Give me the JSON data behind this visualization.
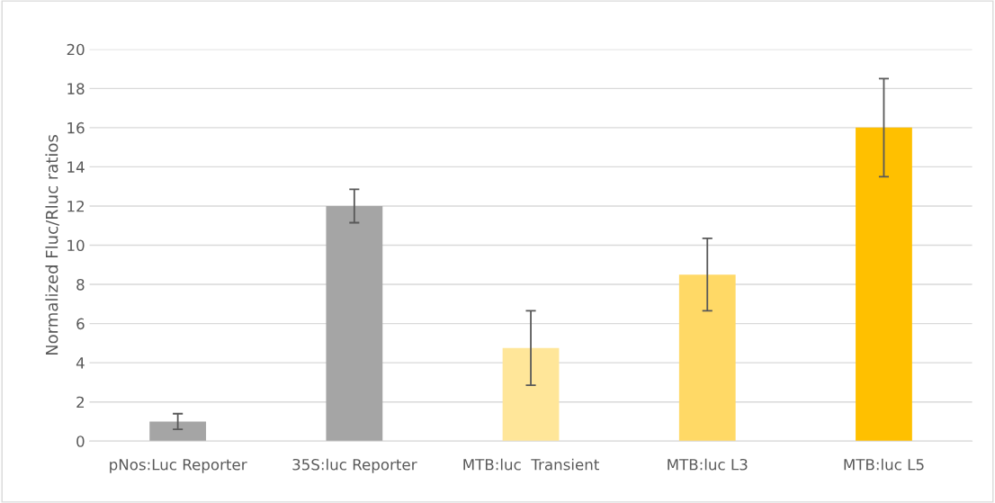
{
  "chart_data": {
    "type": "bar",
    "ylabel": "Normalized Fluc/Rluc ratios",
    "categories": [
      "pNos:Luc Reporter",
      "35S:luc Reporter",
      "MTB:luc  Transient",
      "MTB:luc L3",
      "MTB:luc L5"
    ],
    "values": [
      1.0,
      12.0,
      4.75,
      8.5,
      16.0
    ],
    "errors": [
      0.4,
      0.85,
      1.9,
      1.85,
      2.5
    ],
    "colors": [
      "#a5a5a5",
      "#a5a5a5",
      "#ffe699",
      "#ffd966",
      "#ffc000"
    ],
    "ylim": [
      0,
      20
    ],
    "yticks": [
      0,
      2,
      4,
      6,
      8,
      10,
      12,
      14,
      16,
      18,
      20
    ],
    "grid": "y"
  }
}
